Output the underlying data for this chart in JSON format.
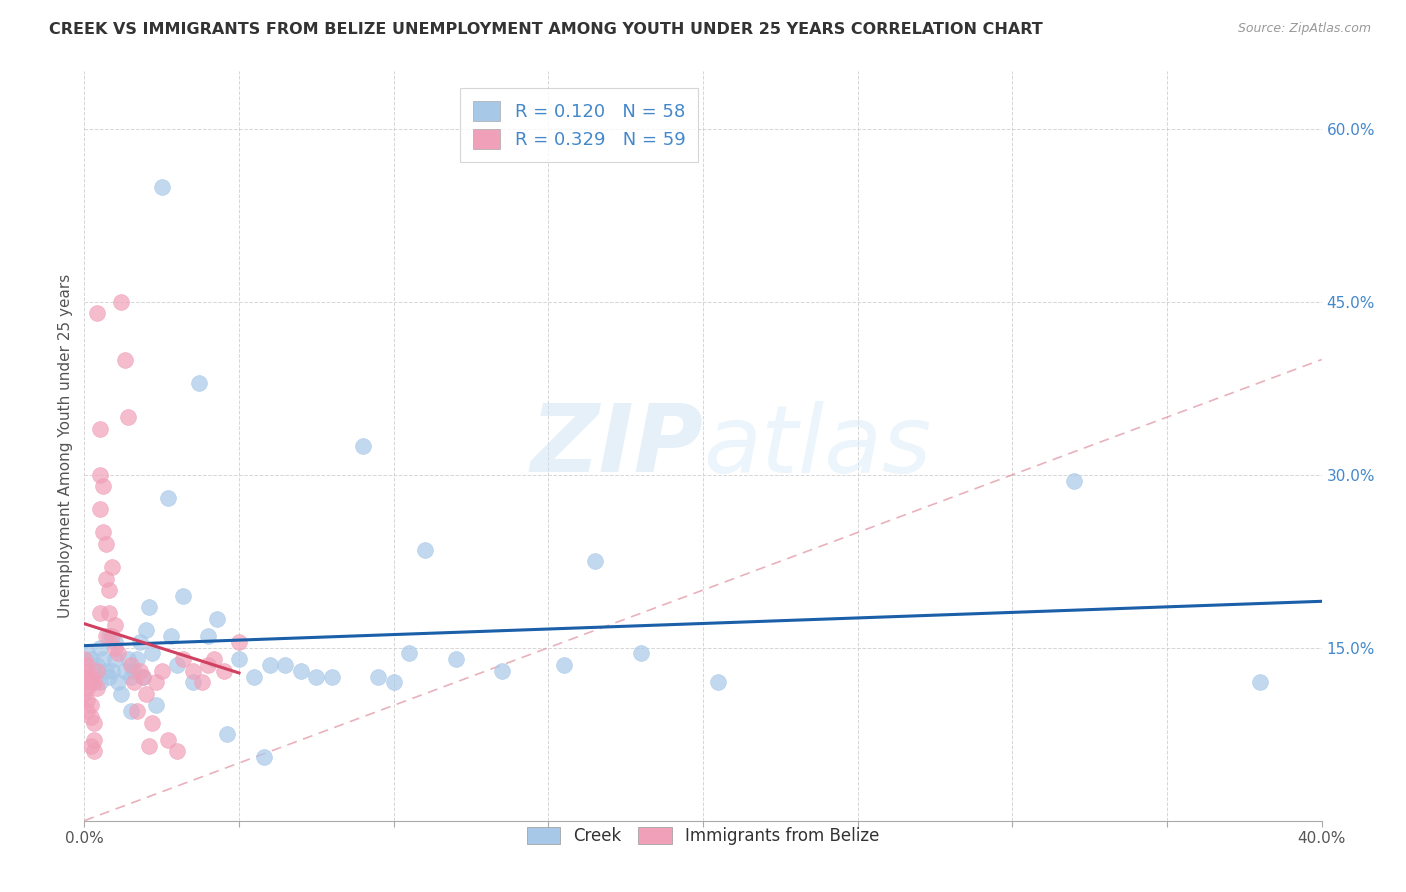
{
  "title": "CREEK VS IMMIGRANTS FROM BELIZE UNEMPLOYMENT AMONG YOUTH UNDER 25 YEARS CORRELATION CHART",
  "source": "Source: ZipAtlas.com",
  "ylabel": "Unemployment Among Youth under 25 years",
  "xlabel_creek": "Creek",
  "xlabel_belize": "Immigrants from Belize",
  "xlim": [
    0.0,
    0.4
  ],
  "ylim": [
    0.0,
    0.65
  ],
  "xticks": [
    0.0,
    0.05,
    0.1,
    0.15,
    0.2,
    0.25,
    0.3,
    0.35,
    0.4
  ],
  "yticks": [
    0.0,
    0.15,
    0.3,
    0.45,
    0.6
  ],
  "R_creek": 0.12,
  "N_creek": 58,
  "R_belize": 0.329,
  "N_belize": 59,
  "creek_color": "#a8c8e8",
  "belize_color": "#f0a0b8",
  "creek_line_color": "#1a5fa8",
  "belize_line_color": "#d04060",
  "watermark_zip": "ZIP",
  "watermark_atlas": "atlas",
  "creek_scatter_x": [
    0.001,
    0.002,
    0.003,
    0.004,
    0.005,
    0.005,
    0.006,
    0.007,
    0.008,
    0.008,
    0.009,
    0.01,
    0.01,
    0.011,
    0.012,
    0.013,
    0.014,
    0.015,
    0.015,
    0.016,
    0.017,
    0.018,
    0.019,
    0.02,
    0.021,
    0.022,
    0.023,
    0.025,
    0.027,
    0.028,
    0.03,
    0.032,
    0.035,
    0.037,
    0.04,
    0.043,
    0.046,
    0.05,
    0.055,
    0.058,
    0.06,
    0.065,
    0.07,
    0.075,
    0.08,
    0.09,
    0.095,
    0.1,
    0.105,
    0.11,
    0.12,
    0.135,
    0.155,
    0.165,
    0.18,
    0.205,
    0.32,
    0.38
  ],
  "creek_scatter_y": [
    0.145,
    0.14,
    0.13,
    0.135,
    0.12,
    0.15,
    0.14,
    0.13,
    0.125,
    0.16,
    0.13,
    0.14,
    0.155,
    0.12,
    0.11,
    0.13,
    0.14,
    0.095,
    0.125,
    0.13,
    0.14,
    0.155,
    0.125,
    0.165,
    0.185,
    0.145,
    0.1,
    0.55,
    0.28,
    0.16,
    0.135,
    0.195,
    0.12,
    0.38,
    0.16,
    0.175,
    0.075,
    0.14,
    0.125,
    0.055,
    0.135,
    0.135,
    0.13,
    0.125,
    0.125,
    0.325,
    0.125,
    0.12,
    0.145,
    0.235,
    0.14,
    0.13,
    0.135,
    0.225,
    0.145,
    0.12,
    0.295,
    0.12
  ],
  "belize_scatter_x": [
    0.0,
    0.0,
    0.0,
    0.0,
    0.001,
    0.001,
    0.001,
    0.001,
    0.001,
    0.002,
    0.002,
    0.002,
    0.002,
    0.002,
    0.003,
    0.003,
    0.003,
    0.003,
    0.004,
    0.004,
    0.004,
    0.005,
    0.005,
    0.005,
    0.005,
    0.006,
    0.006,
    0.007,
    0.007,
    0.007,
    0.008,
    0.008,
    0.009,
    0.009,
    0.01,
    0.01,
    0.011,
    0.012,
    0.013,
    0.014,
    0.015,
    0.016,
    0.017,
    0.018,
    0.019,
    0.02,
    0.021,
    0.022,
    0.023,
    0.025,
    0.027,
    0.03,
    0.032,
    0.035,
    0.038,
    0.04,
    0.042,
    0.045,
    0.05
  ],
  "belize_scatter_y": [
    0.13,
    0.14,
    0.12,
    0.11,
    0.135,
    0.125,
    0.095,
    0.105,
    0.115,
    0.125,
    0.12,
    0.1,
    0.065,
    0.09,
    0.12,
    0.085,
    0.06,
    0.07,
    0.115,
    0.13,
    0.44,
    0.27,
    0.3,
    0.18,
    0.34,
    0.25,
    0.29,
    0.21,
    0.24,
    0.16,
    0.18,
    0.2,
    0.16,
    0.22,
    0.15,
    0.17,
    0.145,
    0.45,
    0.4,
    0.35,
    0.135,
    0.12,
    0.095,
    0.13,
    0.125,
    0.11,
    0.065,
    0.085,
    0.12,
    0.13,
    0.07,
    0.06,
    0.14,
    0.13,
    0.12,
    0.135,
    0.14,
    0.13,
    0.155
  ]
}
